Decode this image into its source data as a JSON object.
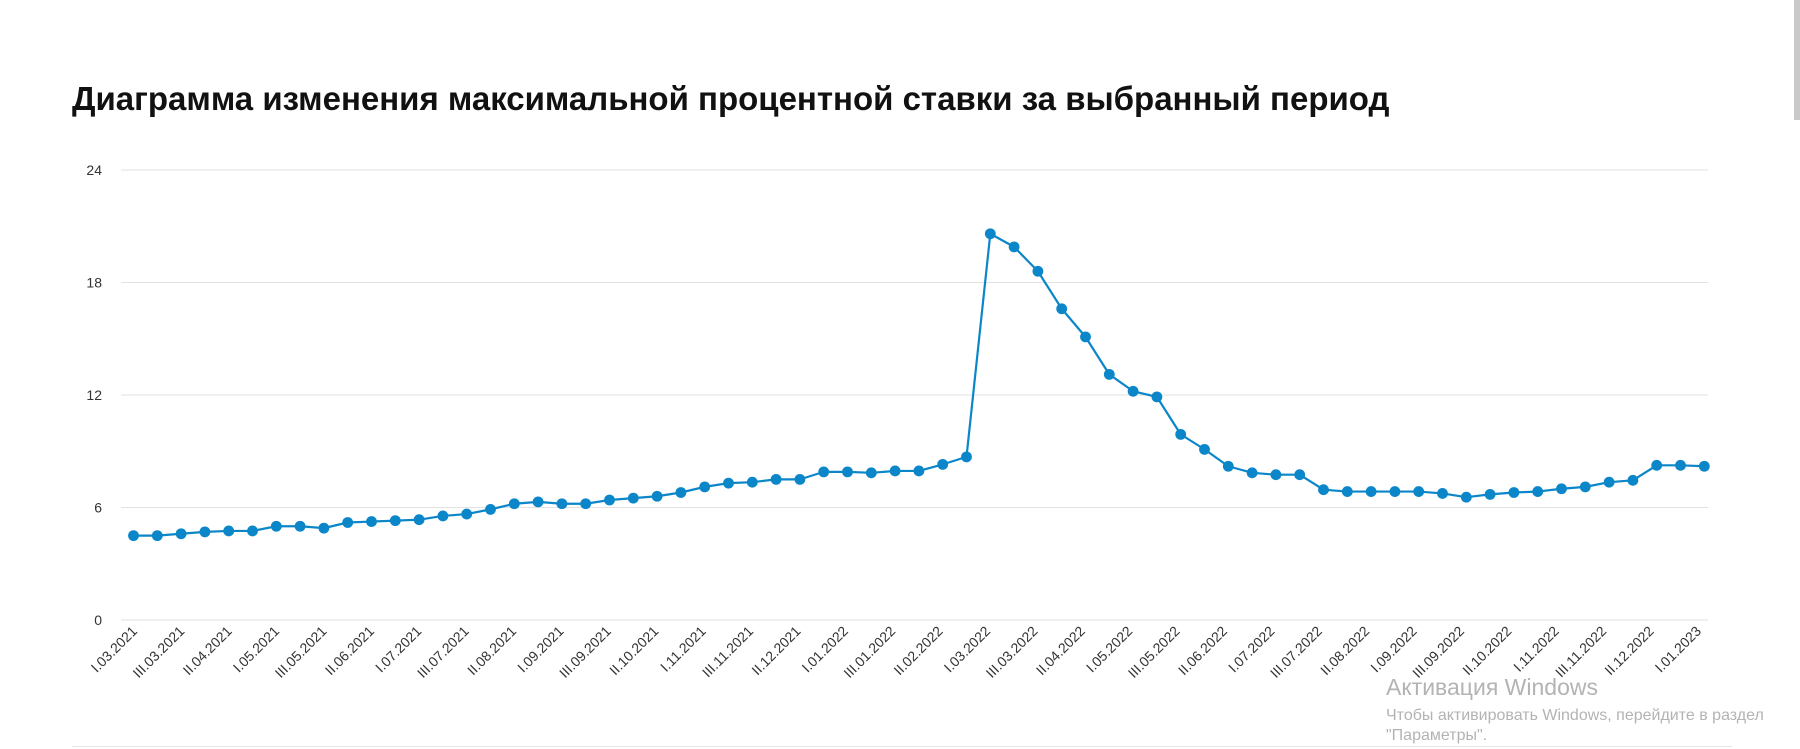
{
  "chart_data": {
    "type": "line",
    "title": "Диаграмма изменения максимальной процентной ставки за выбранный период",
    "ylim": [
      0,
      24
    ],
    "yticks": [
      "0",
      "6",
      "12",
      "18",
      "24"
    ],
    "grid": true,
    "colors": {
      "line": "#0a86c9",
      "grid": "#e2e2e2"
    },
    "xtick_labels": [
      "I.03.2021",
      "III.03.2021",
      "II.04.2021",
      "I.05.2021",
      "III.05.2021",
      "II.06.2021",
      "I.07.2021",
      "III.07.2021",
      "II.08.2021",
      "I.09.2021",
      "III.09.2021",
      "II.10.2021",
      "I.11.2021",
      "III.11.2021",
      "II.12.2021",
      "I.01.2022",
      "III.01.2022",
      "II.02.2022",
      "I.03.2022",
      "III.03.2022",
      "II.04.2022",
      "I.05.2022",
      "III.05.2022",
      "II.06.2022",
      "I.07.2022",
      "III.07.2022",
      "II.08.2022",
      "I.09.2022",
      "III.09.2022",
      "II.10.2022",
      "I.11.2022",
      "III.11.2022",
      "II.12.2022",
      "I.01.2023"
    ],
    "series": [
      {
        "values": [
          4.5,
          4.5,
          4.6,
          4.7,
          4.75,
          4.75,
          5.0,
          5.0,
          4.9,
          5.2,
          5.25,
          5.3,
          5.35,
          5.55,
          5.65,
          5.9,
          6.2,
          6.3,
          6.2,
          6.2,
          6.4,
          6.5,
          6.6,
          6.8,
          7.1,
          7.3,
          7.35,
          7.5,
          7.5,
          7.9,
          7.9,
          7.85,
          7.95,
          7.95,
          8.3,
          8.7,
          20.6,
          19.9,
          18.6,
          16.6,
          15.1,
          13.1,
          12.2,
          11.9,
          9.9,
          9.1,
          8.2,
          7.85,
          7.75,
          7.75,
          6.95,
          6.85,
          6.85,
          6.85,
          6.85,
          6.75,
          6.55,
          6.7,
          6.8,
          6.85,
          7.0,
          7.1,
          7.35,
          7.45,
          8.25,
          8.25,
          8.2
        ]
      }
    ]
  },
  "watermark": {
    "title": "Активация Windows",
    "line1": "Чтобы активировать Windows, перейдите в раздел",
    "line2": "\"Параметры\"."
  }
}
